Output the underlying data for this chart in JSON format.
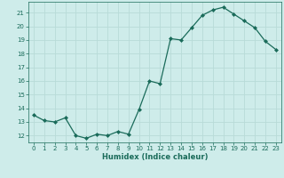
{
  "x": [
    0,
    1,
    2,
    3,
    4,
    5,
    6,
    7,
    8,
    9,
    10,
    11,
    12,
    13,
    14,
    15,
    16,
    17,
    18,
    19,
    20,
    21,
    22,
    23
  ],
  "y": [
    13.5,
    13.1,
    13.0,
    13.3,
    12.0,
    11.8,
    12.1,
    12.0,
    12.3,
    12.1,
    13.9,
    16.0,
    15.8,
    19.1,
    19.0,
    19.9,
    20.8,
    21.2,
    21.4,
    20.9,
    20.4,
    19.9,
    18.9,
    18.3
  ],
  "line_color": "#1a6b5a",
  "marker": "D",
  "marker_size": 2,
  "bg_color": "#ceecea",
  "grid_color": "#b8dbd8",
  "xlabel": "Humidex (Indice chaleur)",
  "ylabel_ticks": [
    12,
    13,
    14,
    15,
    16,
    17,
    18,
    19,
    20,
    21
  ],
  "ylim": [
    11.5,
    21.8
  ],
  "xlim": [
    -0.5,
    23.5
  ],
  "xlabel_color": "#1a6b5a",
  "tick_color": "#1a6b5a",
  "axis_color": "#1a6b5a",
  "tick_fontsize": 5.0,
  "xlabel_fontsize": 6.0
}
